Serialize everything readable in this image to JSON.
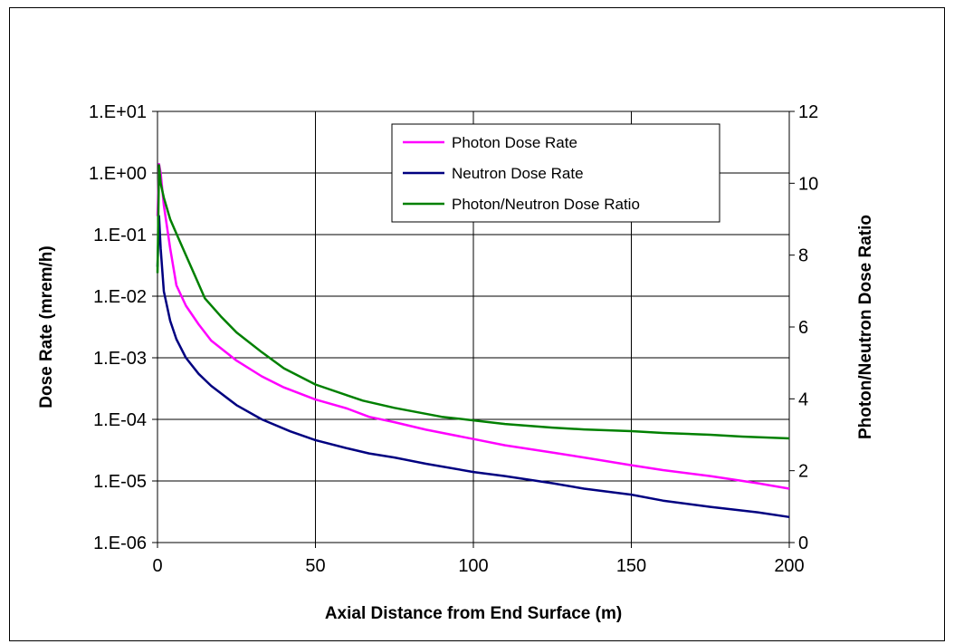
{
  "chart_data": {
    "type": "line",
    "title": "",
    "xlabel": "Axial Distance from End Surface (m)",
    "ylabel": "Dose Rate (mrem/h)",
    "y2label": "Photon/Neutron Dose Ratio",
    "xlim": [
      0,
      200
    ],
    "ylim": [
      1e-06,
      10
    ],
    "ylog": true,
    "y2lim": [
      0,
      12
    ],
    "grid": true,
    "legend_position": "top-right",
    "x_ticks": [
      "0",
      "50",
      "100",
      "150",
      "200"
    ],
    "y_ticks": [
      "1.E-06",
      "1.E-05",
      "1.E-04",
      "1.E-03",
      "1.E-02",
      "1.E-01",
      "1.E+00",
      "1.E+01"
    ],
    "y2_ticks": [
      "0",
      "2",
      "4",
      "6",
      "8",
      "10",
      "12"
    ],
    "series": [
      {
        "name": "Photon Dose Rate",
        "axis": "left",
        "color": "#ff00ff",
        "x": [
          0,
          0.5,
          1,
          2,
          4,
          6,
          9,
          13,
          17,
          25,
          33,
          40,
          50,
          60,
          67,
          75,
          85,
          100,
          110,
          125,
          135,
          150,
          160,
          175,
          190,
          200
        ],
        "y": [
          0.2,
          1.4,
          1.0,
          0.3,
          0.06,
          0.015,
          0.007,
          0.0035,
          0.0019,
          0.0009,
          0.0005,
          0.00033,
          0.00021,
          0.00015,
          0.00011,
          9e-05,
          6.8e-05,
          4.8e-05,
          3.8e-05,
          2.9e-05,
          2.4e-05,
          1.8e-05,
          1.5e-05,
          1.2e-05,
          9.2e-06,
          7.5e-06
        ]
      },
      {
        "name": "Neutron Dose Rate",
        "axis": "left",
        "color": "#000080",
        "x": [
          0,
          0.5,
          1,
          2,
          4,
          6,
          9,
          13,
          17,
          25,
          33,
          42,
          50,
          60,
          67,
          75,
          85,
          100,
          110,
          125,
          135,
          150,
          160,
          175,
          190,
          200
        ],
        "y": [
          0.03,
          0.2,
          0.06,
          0.012,
          0.004,
          0.002,
          0.001,
          0.00055,
          0.00035,
          0.00017,
          0.0001,
          6.4e-05,
          4.6e-05,
          3.4e-05,
          2.8e-05,
          2.4e-05,
          1.9e-05,
          1.4e-05,
          1.2e-05,
          9.2e-06,
          7.5e-06,
          6e-06,
          4.8e-06,
          3.8e-06,
          3.1e-06,
          2.6e-06
        ]
      },
      {
        "name": "Photon/Neutron Dose Ratio",
        "axis": "right",
        "color": "#008000",
        "x": [
          0,
          0.5,
          1,
          2,
          4,
          6,
          9,
          12,
          15,
          20,
          25,
          33,
          40,
          50,
          60,
          65,
          75,
          90,
          100,
          110,
          125,
          135,
          150,
          160,
          175,
          185,
          200
        ],
        "y": [
          7.5,
          10.5,
          10.0,
          9.6,
          9.0,
          8.6,
          8.0,
          7.4,
          6.8,
          6.3,
          5.85,
          5.3,
          4.85,
          4.4,
          4.1,
          3.95,
          3.75,
          3.5,
          3.4,
          3.3,
          3.2,
          3.15,
          3.1,
          3.05,
          3.0,
          2.95,
          2.9
        ]
      }
    ]
  }
}
